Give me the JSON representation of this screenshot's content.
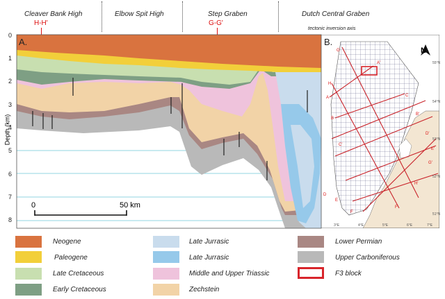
{
  "header": {
    "regions": [
      {
        "name": "Cleaver Bank High",
        "section": "H-H'"
      },
      {
        "name": "Elbow Spit High",
        "section": ""
      },
      {
        "name": "Step Graben",
        "section": "G-G'"
      },
      {
        "name": "Dutch Central Graben",
        "section": ""
      }
    ],
    "annotation": "tectonic inversion axis"
  },
  "section_panel": {
    "label": "A.",
    "ylabel": "Depth (km)",
    "depth_ticks": [
      "0",
      "1",
      "2",
      "3",
      "4",
      "5",
      "6",
      "7",
      "8"
    ],
    "scalebar": {
      "start": "0",
      "end": "50 km"
    }
  },
  "map_panel": {
    "label": "B.",
    "north": "N",
    "lines": [
      "A",
      "A'",
      "B",
      "B'",
      "C",
      "C'",
      "D",
      "D'",
      "E",
      "E'",
      "F",
      "F'",
      "G",
      "G'",
      "H",
      "H'"
    ],
    "lat_labels": [
      "55°N",
      "54°N",
      "53°N",
      "52°N",
      "51°N"
    ],
    "lon_labels": [
      "3°E",
      "4°E",
      "5°E",
      "6°E",
      "7°E"
    ]
  },
  "legend": [
    {
      "label": "Neogene",
      "color": "#d9733f"
    },
    {
      "label": "Paleogene",
      "color": "#f2cf3a"
    },
    {
      "label": "Late Cretaceous",
      "color": "#c8dfb0"
    },
    {
      "label": "Early Cretaceous",
      "color": "#7e9f84"
    },
    {
      "label": "Late Jurrasic",
      "color": "#c9dced"
    },
    {
      "label": "Late Jurrasic",
      "color": "#96c9ea"
    },
    {
      "label": "Middle and Upper Triassic",
      "color": "#efc3dc"
    },
    {
      "label": "Zechstein",
      "color": "#f2d3a7"
    },
    {
      "label": "Lower Permian",
      "color": "#a98783"
    },
    {
      "label": "Upper Carboniferous",
      "color": "#b9b9b9"
    },
    {
      "label": "F3 block",
      "color": "#d8252b"
    }
  ]
}
